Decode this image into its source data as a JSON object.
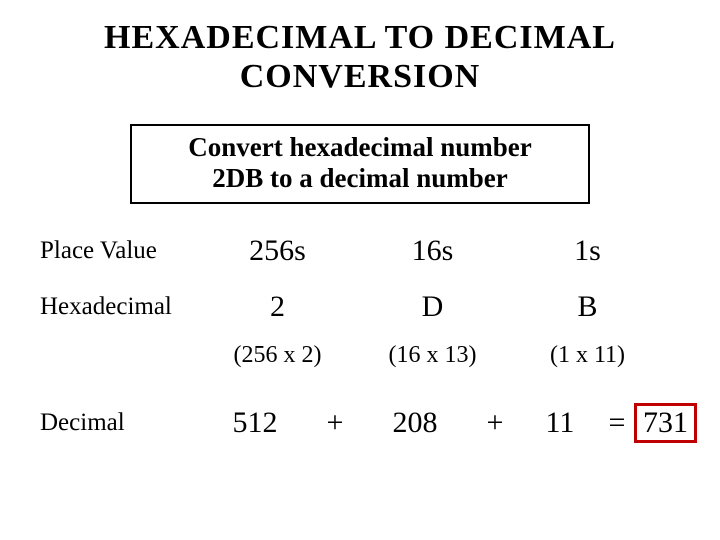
{
  "title_line1": "HEXADECIMAL  TO  DECIMAL",
  "title_line2": "CONVERSION",
  "subtitle_line1": "Convert hexadecimal number",
  "subtitle_line2": "2DB to a decimal number",
  "labels": {
    "place_value": "Place Value",
    "hexadecimal": "Hexadecimal",
    "decimal": "Decimal"
  },
  "place_values": [
    "256s",
    "16s",
    "1s"
  ],
  "hex_digits": [
    "2",
    "D",
    "B"
  ],
  "calculations": [
    "(256 x 2)",
    "(16 x 13)",
    "(1 x 11)"
  ],
  "decimal_parts": {
    "v1": "512",
    "op1": "+",
    "v2": "208",
    "op2": "+",
    "v3": "11",
    "eq": "=",
    "result": "731"
  },
  "colors": {
    "background": "#ffffff",
    "text": "#000000",
    "result_border": "#c00000"
  },
  "typography": {
    "family": "Times New Roman",
    "title_size_pt": 34,
    "subtitle_size_pt": 27,
    "label_size_pt": 25,
    "value_size_pt": 30,
    "calc_size_pt": 24
  }
}
